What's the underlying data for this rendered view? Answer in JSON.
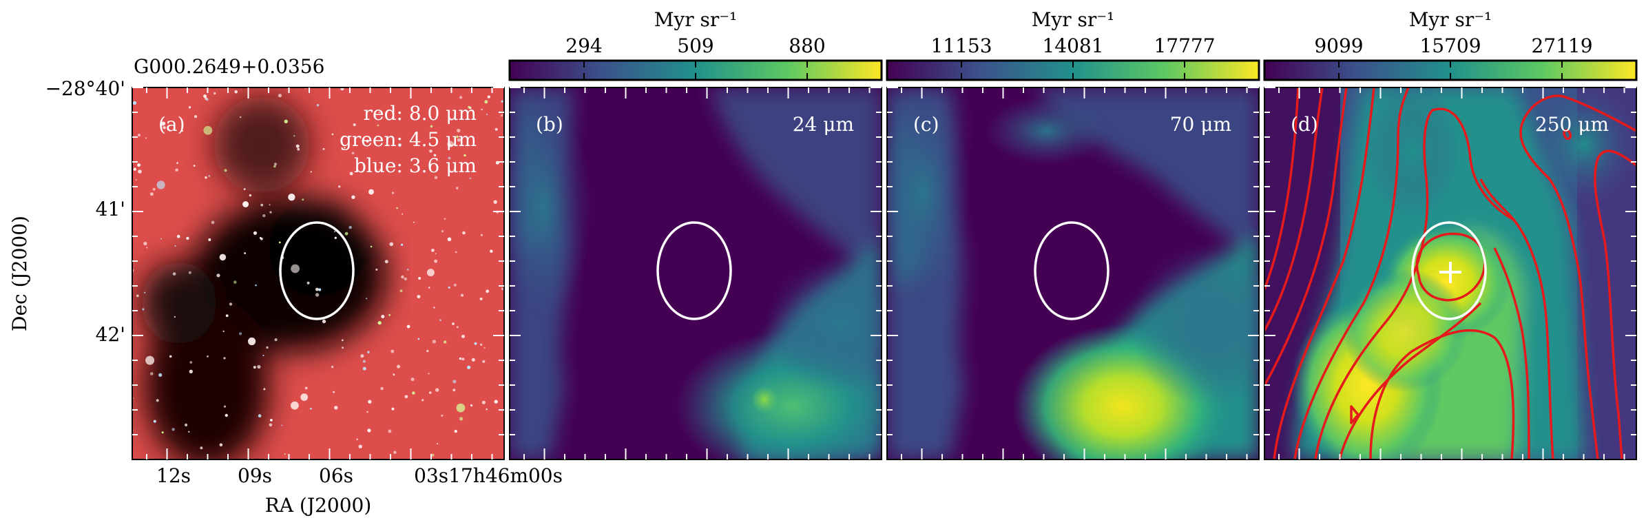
{
  "figure": {
    "source_name": "G000.2649+0.0356",
    "x_axis_label": "RA (J2000)",
    "y_axis_label": "Dec (J2000)",
    "ra_tick_labels": [
      "12s",
      "09s",
      "06s",
      "03s17h46m00s"
    ],
    "dec_tick_labels": [
      "−28°40'",
      "41'",
      "42'"
    ],
    "colormap": [
      "#440154",
      "#3b528b",
      "#21918c",
      "#5ec962",
      "#fde725"
    ]
  },
  "panels": [
    {
      "id": "a",
      "label": "(a)",
      "legend_lines": [
        "red: 8.0 μm",
        "green: 4.5 μm",
        "blue: 3.6 μm"
      ]
    },
    {
      "id": "b",
      "label": "(b)",
      "wavelength": "24 μm",
      "colorbar": {
        "unit": "Myr sr⁻¹",
        "ticks": [
          "294",
          "509",
          "880"
        ]
      }
    },
    {
      "id": "c",
      "label": "(c)",
      "wavelength": "70 μm",
      "colorbar": {
        "unit": "Myr sr⁻¹",
        "ticks": [
          "11153",
          "14081",
          "17777"
        ]
      }
    },
    {
      "id": "d",
      "label": "(d)",
      "wavelength": "250 μm",
      "colorbar": {
        "unit": "Myr sr⁻¹",
        "ticks": [
          "9099",
          "15709",
          "27119"
        ]
      }
    }
  ]
}
